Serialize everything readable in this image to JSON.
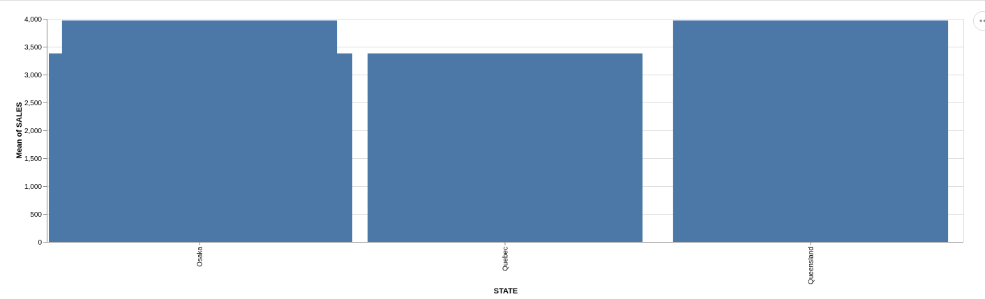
{
  "chart_data": {
    "type": "bar",
    "title": "",
    "xlabel": "STATE",
    "ylabel": "Mean of SALES",
    "categories": [
      "Osaka",
      "Quebec",
      "Queensland"
    ],
    "values": [
      3970,
      3380,
      3970
    ],
    "overlay_value": 3380,
    "overlay_category": "Osaka",
    "ylim": [
      0,
      4000
    ],
    "yticks": [
      0,
      500,
      1000,
      1500,
      2000,
      2500,
      3000,
      3500,
      4000
    ],
    "ytick_labels": [
      "0",
      "500",
      "1,000",
      "1,500",
      "2,000",
      "2,500",
      "3,000",
      "3,500",
      "4,000"
    ],
    "grid": true,
    "bar_color": "#4c78a8",
    "grid_color": "#dddddd",
    "axis_color": "#888888"
  },
  "actions_menu": {
    "icon": "ellipsis-icon"
  }
}
